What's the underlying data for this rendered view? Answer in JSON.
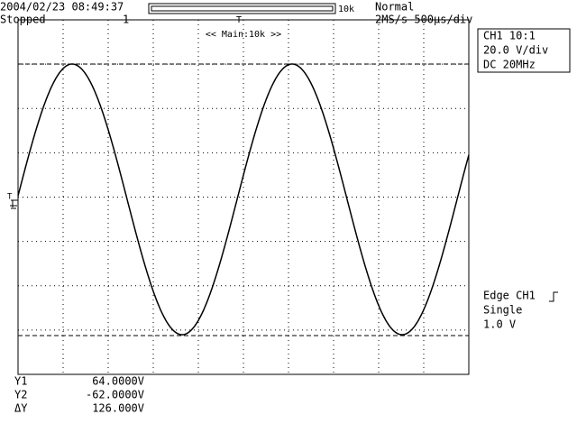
{
  "header": {
    "datetime": "2004/02/23 08:49:37",
    "status": "Stopped",
    "count": "1",
    "mode": "Normal",
    "record_length": "10k",
    "sample_rate": "2MS/s 500µs/div",
    "zoom": "<< Main:10k >>",
    "trigger_marker": "T"
  },
  "channel": {
    "name": "CH1 10:1",
    "scale": "20.0 V/div",
    "coupling": "DC   20MHz"
  },
  "trigger": {
    "source": "Edge CH1",
    "mode": "Single",
    "level": "1.0 V"
  },
  "cursors": {
    "rows": [
      [
        "Y1",
        "64.0000V"
      ],
      [
        "Y2",
        "-62.0000V"
      ],
      [
        "ΔY",
        "126.000V"
      ]
    ]
  }
}
